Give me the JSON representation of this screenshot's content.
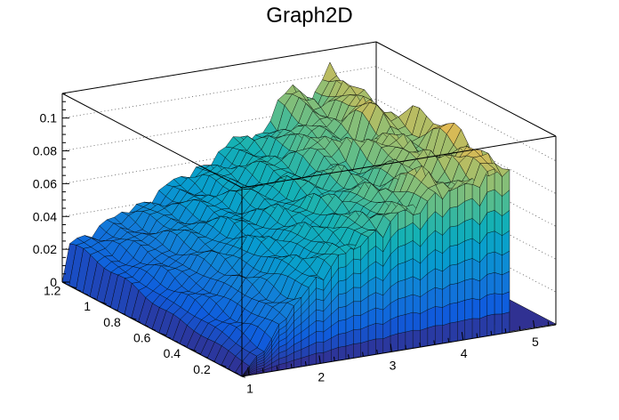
{
  "chart_data": {
    "type": "surface",
    "title": "Graph2D",
    "xlabel": "",
    "ylabel": "",
    "zlabel": "",
    "x_ticks": [
      1,
      2,
      3,
      4,
      5
    ],
    "y_ticks": [
      0.2,
      0.4,
      0.6,
      0.8,
      1,
      1.2
    ],
    "z_ticks": [
      0,
      0.02,
      0.04,
      0.06,
      0.08,
      0.1
    ],
    "x_tick_labels": [
      "1",
      "2",
      "3",
      "4",
      "5"
    ],
    "y_tick_labels": [
      "0.2",
      "0.4",
      "0.6",
      "0.8",
      "1",
      "1.2"
    ],
    "z_tick_labels": [
      "0",
      "0.02",
      "0.04",
      "0.06",
      "0.08",
      "0.1"
    ],
    "xlim": [
      0.9,
      5.3
    ],
    "ylim": [
      0.05,
      1.25
    ],
    "zlim": [
      0,
      0.115
    ],
    "grid": true,
    "palette": "kBird",
    "x_edge": 4.65,
    "surface_profile": {
      "x": [
        0.9,
        2.0,
        3.0,
        4.0,
        4.65
      ],
      "z_at_y_min": [
        0.0,
        0.055,
        0.08,
        0.095,
        0.1
      ],
      "z_at_y_max": [
        0.021,
        0.04,
        0.06,
        0.085,
        0.1
      ]
    }
  }
}
